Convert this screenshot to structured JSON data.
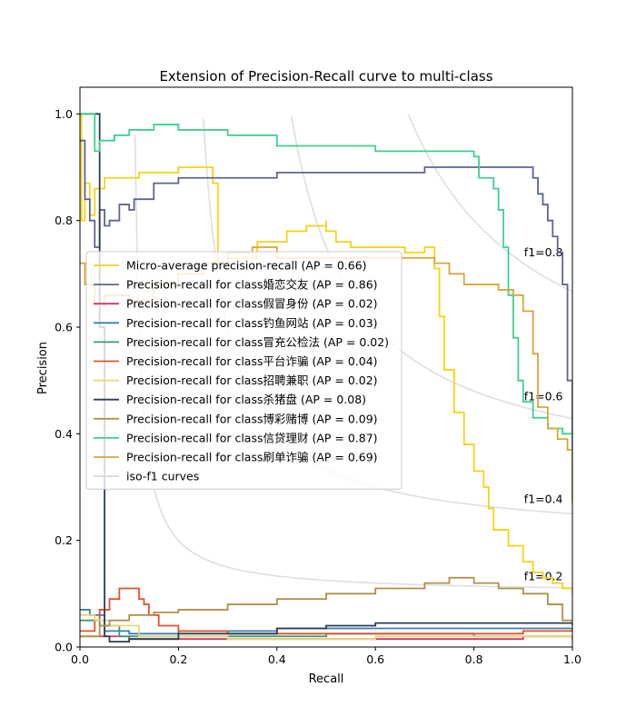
{
  "chart_data": {
    "type": "line",
    "title": "Extension of Precision-Recall curve to multi-class",
    "xlabel": "Recall",
    "ylabel": "Precision",
    "xlim": [
      0.0,
      1.0
    ],
    "ylim": [
      0.0,
      1.05
    ],
    "x_ticks": [
      "0.0",
      "0.2",
      "0.4",
      "0.6",
      "0.8",
      "1.0"
    ],
    "y_ticks": [
      "0.0",
      "0.2",
      "0.4",
      "0.6",
      "0.8",
      "1.0"
    ],
    "grid": false,
    "legend_position": "center-left",
    "iso_f1": {
      "values": [
        0.2,
        0.4,
        0.6,
        0.8
      ],
      "labels": [
        "f1=0.2",
        "f1=0.4",
        "f1=0.6",
        "f1=0.8"
      ],
      "color": "#d9d9d9"
    },
    "series": [
      {
        "name": "Micro-average precision-recall (AP = 0.66)",
        "color": "#f5d316",
        "points": [
          [
            0.0,
            1.0
          ],
          [
            0.003,
            0.8
          ],
          [
            0.01,
            0.87
          ],
          [
            0.02,
            0.81
          ],
          [
            0.03,
            0.86
          ],
          [
            0.05,
            0.88
          ],
          [
            0.07,
            0.88
          ],
          [
            0.12,
            0.89
          ],
          [
            0.2,
            0.9
          ],
          [
            0.26,
            0.9
          ],
          [
            0.27,
            0.87
          ],
          [
            0.28,
            0.77
          ],
          [
            0.28,
            0.72
          ],
          [
            0.3,
            0.73
          ],
          [
            0.36,
            0.76
          ],
          [
            0.42,
            0.78
          ],
          [
            0.46,
            0.79
          ],
          [
            0.5,
            0.8
          ],
          [
            0.5,
            0.78
          ],
          [
            0.52,
            0.76
          ],
          [
            0.55,
            0.75
          ],
          [
            0.6,
            0.75
          ],
          [
            0.66,
            0.74
          ],
          [
            0.7,
            0.75
          ],
          [
            0.72,
            0.71
          ],
          [
            0.73,
            0.62
          ],
          [
            0.74,
            0.52
          ],
          [
            0.76,
            0.44
          ],
          [
            0.78,
            0.38
          ],
          [
            0.8,
            0.33
          ],
          [
            0.82,
            0.3
          ],
          [
            0.83,
            0.26
          ],
          [
            0.84,
            0.22
          ],
          [
            0.87,
            0.19
          ],
          [
            0.9,
            0.16
          ],
          [
            0.92,
            0.14
          ],
          [
            0.94,
            0.13
          ],
          [
            0.96,
            0.12
          ],
          [
            0.98,
            0.11
          ],
          [
            1.0,
            0.1
          ]
        ]
      },
      {
        "name": "Precision-recall for class婚恋交友 (AP = 0.86)",
        "color": "#5d6591",
        "points": [
          [
            0.0,
            0.95
          ],
          [
            0.01,
            0.84
          ],
          [
            0.02,
            0.8
          ],
          [
            0.03,
            0.75
          ],
          [
            0.04,
            0.82
          ],
          [
            0.05,
            0.79
          ],
          [
            0.06,
            0.8
          ],
          [
            0.07,
            0.8
          ],
          [
            0.08,
            0.83
          ],
          [
            0.1,
            0.82
          ],
          [
            0.11,
            0.84
          ],
          [
            0.14,
            0.84
          ],
          [
            0.15,
            0.87
          ],
          [
            0.2,
            0.87
          ],
          [
            0.2,
            0.88
          ],
          [
            0.3,
            0.88
          ],
          [
            0.4,
            0.89
          ],
          [
            0.55,
            0.89
          ],
          [
            0.7,
            0.9
          ],
          [
            0.85,
            0.9
          ],
          [
            0.9,
            0.9
          ],
          [
            0.92,
            0.88
          ],
          [
            0.93,
            0.85
          ],
          [
            0.94,
            0.83
          ],
          [
            0.95,
            0.8
          ],
          [
            0.96,
            0.77
          ],
          [
            0.97,
            0.74
          ],
          [
            0.98,
            0.68
          ],
          [
            0.99,
            0.6
          ],
          [
            0.99,
            0.5
          ],
          [
            1.0,
            0.38
          ],
          [
            1.0,
            0.28
          ]
        ]
      },
      {
        "name": "Precision-recall for class假冒身份 (AP = 0.02)",
        "color": "#d6336c",
        "points": [
          [
            0.0,
            0.02
          ],
          [
            0.04,
            0.02
          ],
          [
            0.1,
            0.015
          ],
          [
            0.3,
            0.015
          ],
          [
            0.6,
            0.015
          ],
          [
            0.9,
            0.02
          ],
          [
            1.0,
            0.015
          ]
        ]
      },
      {
        "name": "Precision-recall for class钓鱼网站 (AP = 0.03)",
        "color": "#3a7fb3",
        "points": [
          [
            0.0,
            0.07
          ],
          [
            0.02,
            0.06
          ],
          [
            0.05,
            0.03
          ],
          [
            0.1,
            0.025
          ],
          [
            0.2,
            0.03
          ],
          [
            0.4,
            0.035
          ],
          [
            0.6,
            0.035
          ],
          [
            0.8,
            0.035
          ],
          [
            1.0,
            0.03
          ]
        ]
      },
      {
        "name": "Precision-recall for class冒充公检法 (AP = 0.02)",
        "color": "#3b9a6e",
        "points": [
          [
            0.0,
            0.05
          ],
          [
            0.04,
            0.04
          ],
          [
            0.08,
            0.02
          ],
          [
            0.2,
            0.02
          ],
          [
            0.5,
            0.025
          ],
          [
            0.8,
            0.02
          ],
          [
            1.0,
            0.02
          ]
        ]
      },
      {
        "name": "Precision-recall for class平台诈骗 (AP = 0.04)",
        "color": "#e2522c",
        "points": [
          [
            0.0,
            0.03
          ],
          [
            0.03,
            0.05
          ],
          [
            0.04,
            0.07
          ],
          [
            0.06,
            0.09
          ],
          [
            0.08,
            0.11
          ],
          [
            0.11,
            0.11
          ],
          [
            0.12,
            0.09
          ],
          [
            0.13,
            0.08
          ],
          [
            0.14,
            0.06
          ],
          [
            0.16,
            0.04
          ],
          [
            0.2,
            0.03
          ],
          [
            0.3,
            0.025
          ],
          [
            0.5,
            0.025
          ],
          [
            0.7,
            0.025
          ],
          [
            0.9,
            0.03
          ],
          [
            1.0,
            0.035
          ]
        ]
      },
      {
        "name": "Precision-recall for class招聘兼职 (AP = 0.02)",
        "color": "#e8d67a",
        "points": [
          [
            0.0,
            0.06
          ],
          [
            0.03,
            0.05
          ],
          [
            0.06,
            0.04
          ],
          [
            0.12,
            0.02
          ],
          [
            0.3,
            0.015
          ],
          [
            0.6,
            0.02
          ],
          [
            0.9,
            0.02
          ],
          [
            1.0,
            0.02
          ]
        ]
      },
      {
        "name": "Precision-recall for class杀猪盘 (AP = 0.08)",
        "color": "#2a4055",
        "points": [
          [
            0.0,
            1.0
          ],
          [
            0.04,
            1.0
          ],
          [
            0.04,
            0.6
          ],
          [
            0.05,
            0.02
          ],
          [
            0.06,
            0.01
          ],
          [
            0.1,
            0.015
          ],
          [
            0.2,
            0.025
          ],
          [
            0.4,
            0.035
          ],
          [
            0.5,
            0.04
          ],
          [
            0.6,
            0.045
          ],
          [
            0.7,
            0.045
          ],
          [
            0.8,
            0.045
          ],
          [
            1.0,
            0.04
          ]
        ]
      },
      {
        "name": "Precision-recall for class博彩赌博 (AP = 0.09)",
        "color": "#b0914a",
        "points": [
          [
            0.0,
            0.02
          ],
          [
            0.04,
            0.04
          ],
          [
            0.06,
            0.05
          ],
          [
            0.1,
            0.06
          ],
          [
            0.15,
            0.065
          ],
          [
            0.2,
            0.07
          ],
          [
            0.3,
            0.08
          ],
          [
            0.4,
            0.09
          ],
          [
            0.5,
            0.1
          ],
          [
            0.6,
            0.11
          ],
          [
            0.7,
            0.12
          ],
          [
            0.75,
            0.13
          ],
          [
            0.8,
            0.12
          ],
          [
            0.85,
            0.11
          ],
          [
            0.9,
            0.1
          ],
          [
            0.95,
            0.08
          ],
          [
            0.98,
            0.05
          ],
          [
            1.0,
            0.045
          ]
        ]
      },
      {
        "name": "Precision-recall for class信贷理财 (AP = 0.87)",
        "color": "#3fcf8e",
        "points": [
          [
            0.0,
            1.0
          ],
          [
            0.02,
            1.0
          ],
          [
            0.03,
            0.93
          ],
          [
            0.04,
            0.95
          ],
          [
            0.05,
            0.95
          ],
          [
            0.07,
            0.96
          ],
          [
            0.1,
            0.97
          ],
          [
            0.15,
            0.98
          ],
          [
            0.2,
            0.97
          ],
          [
            0.3,
            0.96
          ],
          [
            0.4,
            0.94
          ],
          [
            0.5,
            0.94
          ],
          [
            0.6,
            0.93
          ],
          [
            0.7,
            0.93
          ],
          [
            0.8,
            0.92
          ],
          [
            0.81,
            0.88
          ],
          [
            0.84,
            0.86
          ],
          [
            0.85,
            0.82
          ],
          [
            0.86,
            0.75
          ],
          [
            0.87,
            0.66
          ],
          [
            0.88,
            0.58
          ],
          [
            0.89,
            0.5
          ],
          [
            0.9,
            0.46
          ],
          [
            0.92,
            0.43
          ],
          [
            0.95,
            0.41
          ],
          [
            0.98,
            0.4
          ],
          [
            1.0,
            0.38
          ]
        ]
      },
      {
        "name": "Precision-recall for class刷单诈骗 (AP = 0.69)",
        "color": "#d4a83a",
        "points": [
          [
            0.0,
            0.72
          ],
          [
            0.01,
            0.68
          ],
          [
            0.03,
            0.64
          ],
          [
            0.05,
            0.66
          ],
          [
            0.1,
            0.65
          ],
          [
            0.15,
            0.68
          ],
          [
            0.2,
            0.7
          ],
          [
            0.25,
            0.72
          ],
          [
            0.3,
            0.74
          ],
          [
            0.35,
            0.75
          ],
          [
            0.4,
            0.73
          ],
          [
            0.5,
            0.73
          ],
          [
            0.6,
            0.73
          ],
          [
            0.7,
            0.73
          ],
          [
            0.72,
            0.72
          ],
          [
            0.75,
            0.7
          ],
          [
            0.78,
            0.68
          ],
          [
            0.82,
            0.68
          ],
          [
            0.85,
            0.67
          ],
          [
            0.88,
            0.66
          ],
          [
            0.9,
            0.63
          ],
          [
            0.92,
            0.55
          ],
          [
            0.93,
            0.45
          ],
          [
            0.95,
            0.41
          ],
          [
            0.97,
            0.39
          ],
          [
            0.99,
            0.37
          ],
          [
            1.0,
            0.27
          ]
        ]
      }
    ]
  }
}
